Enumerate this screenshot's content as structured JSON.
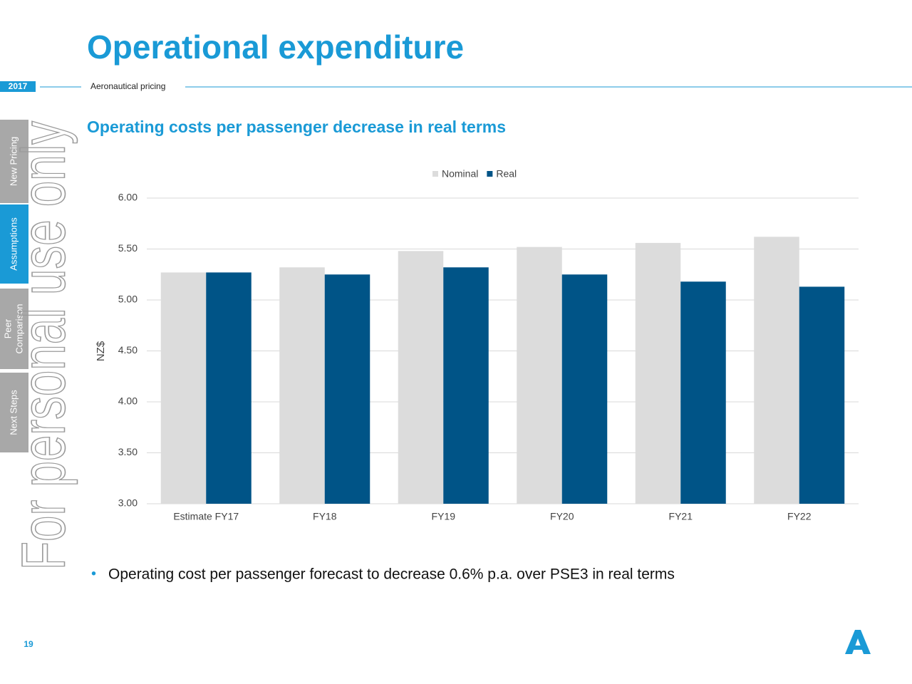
{
  "header": {
    "title": "Operational expenditure",
    "year": "2017",
    "section": "Aeronautical pricing"
  },
  "sidebar": {
    "tabs": [
      [
        "New Pricing"
      ],
      [
        "Assumptions"
      ],
      [
        "Peer",
        "Comparison"
      ],
      [
        "Next Steps"
      ]
    ]
  },
  "watermark": "For personal use only",
  "chart_data": {
    "type": "bar",
    "title": "Operating costs per passenger decrease in real terms",
    "ylabel": "NZ$",
    "categories": [
      "Estimate FY17",
      "FY18",
      "FY19",
      "FY20",
      "FY21",
      "FY22"
    ],
    "series": [
      {
        "name": "Nominal",
        "color": "#dcdcdc",
        "values": [
          5.27,
          5.32,
          5.48,
          5.52,
          5.56,
          5.62
        ]
      },
      {
        "name": "Real",
        "color": "#005487",
        "values": [
          5.27,
          5.25,
          5.32,
          5.25,
          5.18,
          5.13
        ]
      }
    ],
    "ylim": [
      3,
      6
    ],
    "yticks": [
      {
        "value": 3,
        "label": "3.00"
      },
      {
        "value": 3.5,
        "label": "3.50"
      },
      {
        "value": 4,
        "label": "4.00"
      },
      {
        "value": 4.5,
        "label": "4.50"
      },
      {
        "value": 5,
        "label": "5.00"
      },
      {
        "value": 5.5,
        "label": "5.50"
      },
      {
        "value": 6,
        "label": "6.00"
      }
    ],
    "grid": true,
    "legend": "top"
  },
  "bullets": [
    "Operating cost per passenger forecast to decrease 0.6% p.a. over PSE3 in real terms"
  ],
  "page_number": "19"
}
